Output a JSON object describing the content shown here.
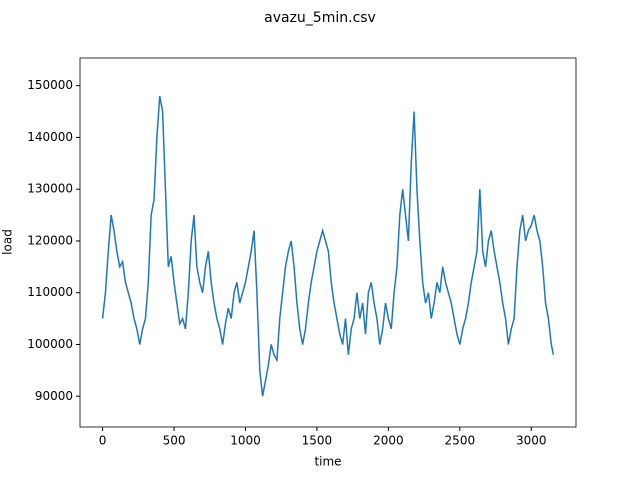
{
  "chart_data": {
    "type": "line",
    "title": "avazu_5min.csv",
    "x_label": "time",
    "y_label": "load",
    "x": [
      0,
      20,
      40,
      60,
      80,
      100,
      120,
      140,
      160,
      180,
      200,
      220,
      240,
      260,
      280,
      300,
      320,
      340,
      360,
      380,
      400,
      420,
      440,
      460,
      480,
      500,
      520,
      540,
      560,
      580,
      600,
      620,
      640,
      660,
      680,
      700,
      720,
      740,
      760,
      780,
      800,
      820,
      840,
      860,
      880,
      900,
      920,
      940,
      960,
      980,
      1000,
      1020,
      1040,
      1060,
      1080,
      1100,
      1120,
      1140,
      1160,
      1180,
      1200,
      1220,
      1240,
      1260,
      1280,
      1300,
      1320,
      1340,
      1360,
      1380,
      1400,
      1420,
      1440,
      1460,
      1480,
      1500,
      1520,
      1540,
      1560,
      1580,
      1600,
      1620,
      1640,
      1660,
      1680,
      1700,
      1720,
      1740,
      1760,
      1780,
      1800,
      1820,
      1840,
      1860,
      1880,
      1900,
      1920,
      1940,
      1960,
      1980,
      2000,
      2020,
      2040,
      2060,
      2080,
      2100,
      2120,
      2140,
      2160,
      2180,
      2200,
      2220,
      2240,
      2260,
      2280,
      2300,
      2320,
      2340,
      2360,
      2380,
      2400,
      2420,
      2440,
      2460,
      2480,
      2500,
      2520,
      2540,
      2560,
      2580,
      2600,
      2620,
      2640,
      2660,
      2680,
      2700,
      2720,
      2740,
      2760,
      2780,
      2800,
      2820,
      2840,
      2860,
      2880,
      2900,
      2920,
      2940,
      2960,
      2980,
      3000,
      3020,
      3040,
      3060,
      3080,
      3100,
      3120,
      3140,
      3155
    ],
    "series": [
      {
        "name": "load",
        "color": "#1f77b4",
        "values": [
          105000,
          110000,
          118000,
          125000,
          122000,
          118000,
          115000,
          116000,
          112000,
          110000,
          108000,
          105000,
          103000,
          100000,
          103000,
          105000,
          112000,
          125000,
          128000,
          140000,
          148000,
          145000,
          130000,
          115000,
          117000,
          112000,
          108000,
          104000,
          105000,
          103000,
          110000,
          120000,
          125000,
          115000,
          112000,
          110000,
          115000,
          118000,
          112000,
          108000,
          105000,
          103000,
          100000,
          104000,
          107000,
          105000,
          110000,
          112000,
          108000,
          110000,
          112000,
          115000,
          118000,
          122000,
          110000,
          95000,
          90000,
          93000,
          96000,
          100000,
          98000,
          97000,
          105000,
          110000,
          115000,
          118000,
          120000,
          115000,
          108000,
          103000,
          100000,
          103000,
          108000,
          112000,
          115000,
          118000,
          120000,
          122000,
          120000,
          118000,
          112000,
          108000,
          105000,
          102000,
          100000,
          105000,
          98000,
          103000,
          105000,
          110000,
          105000,
          108000,
          102000,
          110000,
          112000,
          108000,
          105000,
          100000,
          103000,
          108000,
          105000,
          103000,
          110000,
          115000,
          125000,
          130000,
          125000,
          120000,
          135000,
          145000,
          130000,
          120000,
          112000,
          108000,
          110000,
          105000,
          108000,
          112000,
          110000,
          115000,
          112000,
          110000,
          108000,
          105000,
          102000,
          100000,
          103000,
          105000,
          108000,
          112000,
          115000,
          118000,
          130000,
          118000,
          115000,
          120000,
          122000,
          118000,
          115000,
          112000,
          108000,
          105000,
          100000,
          103000,
          105000,
          115000,
          122000,
          125000,
          120000,
          122000,
          123000,
          125000,
          122000,
          120000,
          115000,
          108000,
          105000,
          100000,
          98000
        ]
      }
    ],
    "xlim": [
      -158,
      3313
    ],
    "ylim": [
      84060,
      155340
    ],
    "xticks": [
      0,
      500,
      1000,
      1500,
      2000,
      2500,
      3000
    ],
    "yticks": [
      90000,
      100000,
      110000,
      120000,
      130000,
      140000,
      150000
    ]
  }
}
